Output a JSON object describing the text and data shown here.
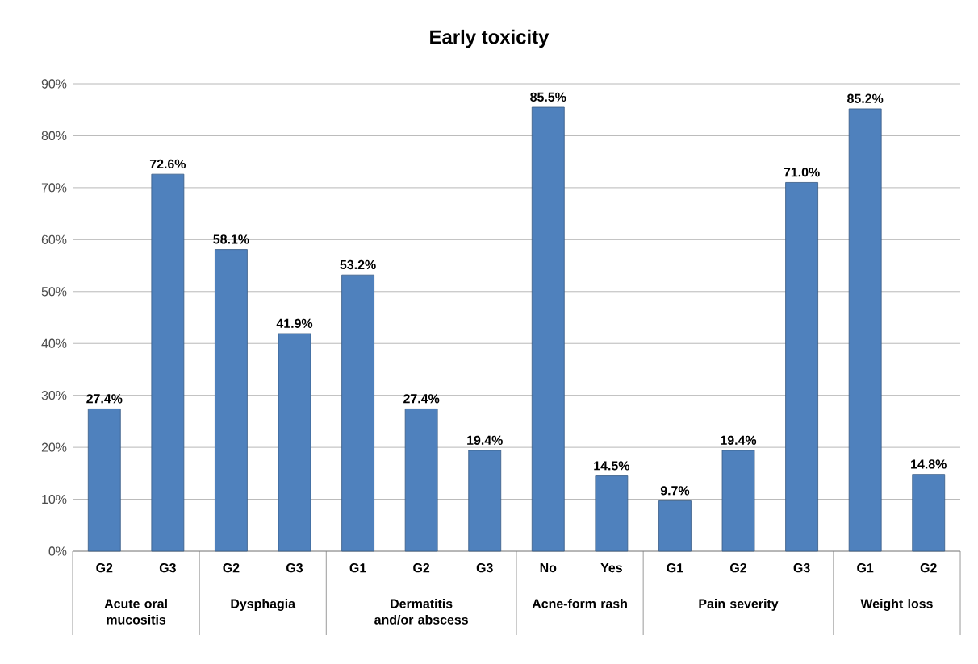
{
  "chart_data": {
    "type": "bar",
    "title": "Early toxicity",
    "categories": [
      "G2",
      "G3",
      "G2",
      "G3",
      "G1",
      "G2",
      "G3",
      "No",
      "Yes",
      "G1",
      "G2",
      "G3",
      "G1",
      "G2"
    ],
    "values": [
      27.4,
      72.6,
      58.1,
      41.9,
      53.2,
      27.4,
      19.4,
      85.5,
      14.5,
      9.7,
      19.4,
      71.0,
      85.2,
      14.8
    ],
    "value_labels": [
      "27.4%",
      "72.6%",
      "58.1%",
      "41.9%",
      "53.2%",
      "27.4%",
      "19.4%",
      "85.5%",
      "14.5%",
      "9.7%",
      "19.4%",
      "71.0%",
      "85.2%",
      "14.8%"
    ],
    "color": "#4f81bd",
    "ylim": [
      0,
      90
    ],
    "yticks": [
      {
        "value": 0,
        "label": "0%"
      },
      {
        "value": 10,
        "label": "10%"
      },
      {
        "value": 20,
        "label": "20%"
      },
      {
        "value": 30,
        "label": "30%"
      },
      {
        "value": 40,
        "label": "40%"
      },
      {
        "value": 50,
        "label": "50%"
      },
      {
        "value": 60,
        "label": "60%"
      },
      {
        "value": 70,
        "label": "70%"
      },
      {
        "value": 80,
        "label": "80%"
      },
      {
        "value": 90,
        "label": "90%"
      }
    ],
    "grid": "y",
    "annotations": [
      "Acute oral mucositis",
      "Dysphagia",
      "Dermatitis and/or abscess",
      "Acne-form rash",
      "Pain severity",
      "Weight loss"
    ]
  }
}
